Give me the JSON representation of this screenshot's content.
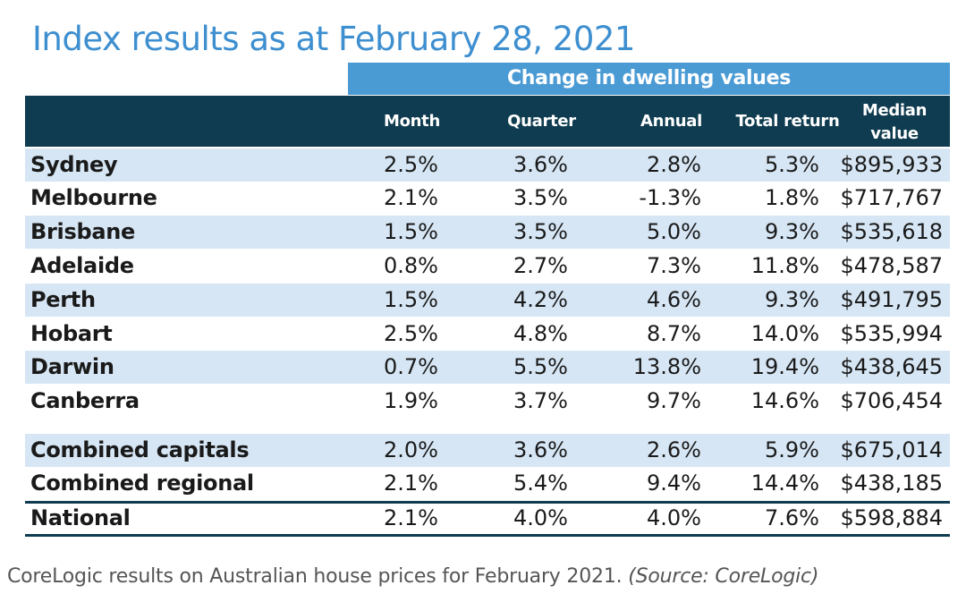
{
  "title": "Index results as at February 28, 2021",
  "group_header": "Change in dwelling values",
  "columns": {
    "month": "Month",
    "quarter": "Quarter",
    "annual": "Annual",
    "total_return": "Total return",
    "median_line1": "Median",
    "median_line2": "value"
  },
  "rows": [
    {
      "city": "Sydney",
      "month": "2.5%",
      "quarter": "3.6%",
      "annual": "2.8%",
      "total_return": "5.3%",
      "median": "$895,933"
    },
    {
      "city": "Melbourne",
      "month": "2.1%",
      "quarter": "3.5%",
      "annual": "-1.3%",
      "total_return": "1.8%",
      "median": "$717,767"
    },
    {
      "city": "Brisbane",
      "month": "1.5%",
      "quarter": "3.5%",
      "annual": "5.0%",
      "total_return": "9.3%",
      "median": "$535,618"
    },
    {
      "city": "Adelaide",
      "month": "0.8%",
      "quarter": "2.7%",
      "annual": "7.3%",
      "total_return": "11.8%",
      "median": "$478,587"
    },
    {
      "city": "Perth",
      "month": "1.5%",
      "quarter": "4.2%",
      "annual": "4.6%",
      "total_return": "9.3%",
      "median": "$491,795"
    },
    {
      "city": "Hobart",
      "month": "2.5%",
      "quarter": "4.8%",
      "annual": "8.7%",
      "total_return": "14.0%",
      "median": "$535,994"
    },
    {
      "city": "Darwin",
      "month": "0.7%",
      "quarter": "5.5%",
      "annual": "13.8%",
      "total_return": "19.4%",
      "median": "$438,645"
    },
    {
      "city": "Canberra",
      "month": "1.9%",
      "quarter": "3.7%",
      "annual": "9.7%",
      "total_return": "14.6%",
      "median": "$706,454"
    },
    {
      "city": "Combined capitals",
      "month": "2.0%",
      "quarter": "3.6%",
      "annual": "2.6%",
      "total_return": "5.9%",
      "median": "$675,014"
    },
    {
      "city": "Combined regional",
      "month": "2.1%",
      "quarter": "5.4%",
      "annual": "9.4%",
      "total_return": "14.4%",
      "median": "$438,185"
    },
    {
      "city": "National",
      "month": "2.1%",
      "quarter": "4.0%",
      "annual": "4.0%",
      "total_return": "7.6%",
      "median": "$598,884"
    }
  ],
  "caption": {
    "text": "CoreLogic results on Australian house prices for February 2021. ",
    "source": "(Source: CoreLogic)"
  },
  "colors": {
    "title": "#3e8fd0",
    "group_header_bg": "#4a9ad4",
    "column_header_bg": "#0f3c50",
    "row_shade": "#d6e6f4"
  }
}
